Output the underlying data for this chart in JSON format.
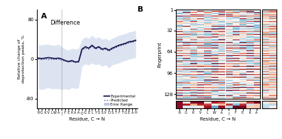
{
  "panel_A": {
    "title": "Difference",
    "ylabel": "Relative change of\ndeprotection peaks, %",
    "xlabel": "Residue, C → N",
    "xtick_labels": [
      "R",
      "G",
      "K",
      "V",
      "L",
      "W",
      "A",
      "|",
      "F",
      "E",
      "K",
      "A",
      "A",
      "Q",
      "G",
      "E",
      "L",
      "Y",
      "S",
      "S",
      "V",
      "D",
      "S",
      "T",
      "F",
      "T",
      "G",
      "E",
      "A",
      "H"
    ],
    "yticks": [
      -80,
      0,
      80
    ],
    "experimental": [
      2,
      1,
      2,
      3,
      2,
      1,
      2,
      0,
      -3,
      -5,
      -3,
      -6,
      -5,
      20,
      25,
      22,
      28,
      22,
      25,
      20,
      22,
      18,
      22,
      25,
      28,
      30,
      32,
      35,
      36,
      38
    ],
    "predicted": [
      0,
      -1,
      0,
      -1,
      0,
      -1,
      0,
      -2,
      -4,
      -6,
      -5,
      -7,
      -6,
      18,
      22,
      20,
      26,
      20,
      23,
      18,
      20,
      16,
      20,
      23,
      26,
      28,
      30,
      33,
      34,
      36
    ],
    "error_upper": [
      30,
      28,
      30,
      30,
      28,
      28,
      30,
      25,
      20,
      18,
      22,
      20,
      22,
      40,
      45,
      42,
      48,
      42,
      45,
      40,
      42,
      38,
      42,
      45,
      48,
      50,
      52,
      55,
      56,
      58
    ],
    "error_lower": [
      -60,
      -62,
      -60,
      -58,
      -60,
      -60,
      -60,
      -62,
      -60,
      -62,
      -58,
      -60,
      -58,
      -15,
      -10,
      -12,
      -8,
      -12,
      -10,
      -15,
      -12,
      -18,
      -12,
      -10,
      -8,
      -5,
      -3,
      0,
      1,
      3
    ],
    "line_color": "#191950",
    "predicted_color": "#3a3a8a",
    "fill_color": "#aabcde",
    "fill_alpha": 0.4
  },
  "panel_B": {
    "xlabel": "Residue, C → N",
    "ylabel": "Fingerprint",
    "xtick_labels": [
      "R",
      "G",
      "K",
      "V",
      "L",
      "W",
      "A",
      "|",
      "F",
      "E",
      "K",
      "A"
    ],
    "yticks": [
      1,
      32,
      64,
      96,
      128
    ],
    "n_rows": 135,
    "n_cols_main": 12,
    "n_cols_side": 2
  }
}
